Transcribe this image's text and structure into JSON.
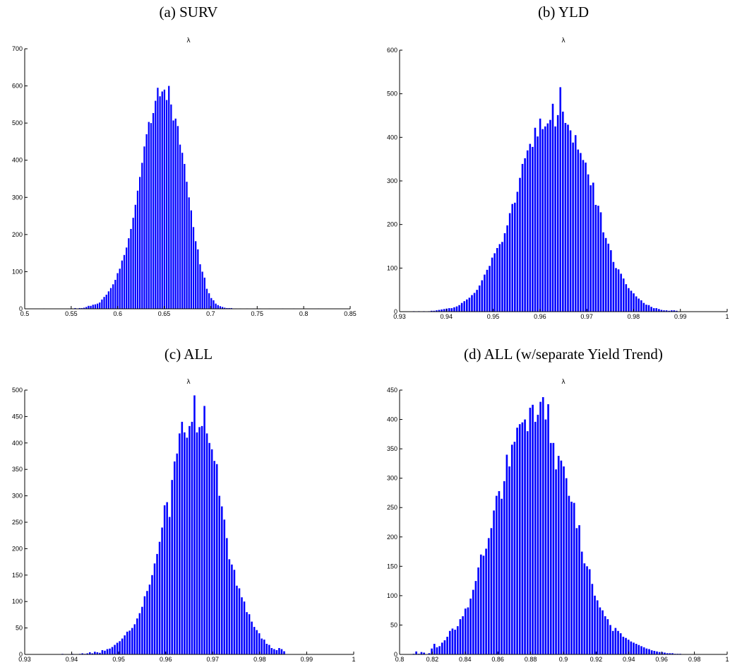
{
  "chart_data": [
    {
      "type": "bar",
      "panel": "a",
      "title": "(a) SURV",
      "annotation": "λ",
      "xlim": [
        0.5,
        0.85
      ],
      "ylim": [
        0,
        700
      ],
      "xticks": [
        0.5,
        0.55,
        0.6,
        0.65,
        0.7,
        0.75,
        0.8,
        0.85
      ],
      "xtick_labels": [
        "0.5",
        "0.55",
        "0.6",
        "0.65",
        "0.7",
        "0.75",
        "0.8",
        "0.85"
      ],
      "yticks": [
        0,
        100,
        200,
        300,
        400,
        500,
        600,
        700
      ],
      "ytick_labels": [
        "0",
        "100",
        "200",
        "300",
        "400",
        "500",
        "600",
        "700"
      ],
      "bin_start": 0.5196,
      "bin_width": 0.0024,
      "values": [
        1,
        0,
        0,
        0,
        0,
        0,
        0,
        0,
        0,
        0,
        0,
        1,
        1,
        1,
        2,
        1,
        2,
        2,
        3,
        5,
        8,
        8,
        11,
        12,
        14,
        17,
        25,
        32,
        38,
        47,
        56,
        66,
        78,
        96,
        108,
        130,
        145,
        165,
        190,
        215,
        245,
        280,
        318,
        355,
        393,
        437,
        470,
        503,
        500,
        527,
        560,
        595,
        572,
        585,
        590,
        562,
        600,
        550,
        507,
        512,
        492,
        442,
        420,
        390,
        342,
        300,
        265,
        220,
        182,
        160,
        120,
        100,
        84,
        54,
        42,
        29,
        23,
        14,
        10,
        7,
        5,
        3,
        2,
        2,
        2,
        1,
        1,
        0,
        1,
        0,
        0,
        1,
        0,
        0,
        1,
        0,
        0,
        1,
        0,
        0,
        0,
        1,
        0,
        0,
        0,
        0,
        0,
        1,
        0,
        0,
        0,
        0,
        1,
        0,
        0,
        0,
        0,
        0,
        0,
        0,
        0,
        0,
        0,
        1
      ]
    },
    {
      "type": "bar",
      "panel": "b",
      "title": "(b) YLD",
      "annotation": "λ",
      "xlim": [
        0.93,
        1
      ],
      "ylim": [
        0,
        600
      ],
      "xticks": [
        0.93,
        0.94,
        0.95,
        0.96,
        0.97,
        0.98,
        0.99,
        1
      ],
      "xtick_labels": [
        "0.93",
        "0.94",
        "0.95",
        "0.96",
        "0.97",
        "0.98",
        "0.99",
        "1"
      ],
      "yticks": [
        0,
        100,
        200,
        300,
        400,
        500,
        600
      ],
      "ytick_labels": [
        "0",
        "100",
        "200",
        "300",
        "400",
        "500",
        "600"
      ],
      "bin_start": 0.9328,
      "bin_width": 0.00054,
      "values": [
        1,
        0,
        1,
        0,
        1,
        0,
        1,
        2,
        2,
        3,
        4,
        5,
        6,
        7,
        8,
        8,
        10,
        12,
        15,
        20,
        24,
        28,
        32,
        38,
        43,
        50,
        60,
        72,
        85,
        96,
        105,
        124,
        134,
        146,
        155,
        160,
        180,
        198,
        226,
        247,
        250,
        275,
        307,
        339,
        352,
        370,
        385,
        378,
        422,
        402,
        443,
        419,
        425,
        432,
        440,
        477,
        425,
        451,
        515,
        459,
        433,
        429,
        416,
        388,
        405,
        372,
        364,
        348,
        342,
        315,
        290,
        296,
        245,
        243,
        228,
        182,
        169,
        156,
        141,
        114,
        100,
        97,
        87,
        76,
        63,
        54,
        48,
        42,
        35,
        30,
        26,
        20,
        16,
        15,
        11,
        8,
        8,
        6,
        4,
        3,
        3,
        2,
        3,
        3,
        2
      ]
    },
    {
      "type": "bar",
      "panel": "c",
      "title": "(c) ALL",
      "annotation": "λ",
      "xlim": [
        0.93,
        1
      ],
      "ylim": [
        0,
        500
      ],
      "xticks": [
        0.93,
        0.94,
        0.95,
        0.96,
        0.97,
        0.98,
        0.99,
        1
      ],
      "xtick_labels": [
        "0.93",
        "0.94",
        "0.95",
        "0.96",
        "0.97",
        "0.98",
        "0.99",
        "1"
      ],
      "yticks": [
        0,
        50,
        100,
        150,
        200,
        250,
        300,
        350,
        400,
        450,
        500
      ],
      "ytick_labels": [
        "0",
        "50",
        "100",
        "150",
        "200",
        "250",
        "300",
        "350",
        "400",
        "450",
        "500"
      ],
      "bin_start": 0.9378,
      "bin_width": 0.00053,
      "values": [
        1,
        0,
        0,
        0,
        1,
        0,
        0,
        1,
        2,
        1,
        2,
        4,
        2,
        5,
        4,
        3,
        8,
        7,
        10,
        11,
        14,
        18,
        22,
        25,
        30,
        36,
        43,
        45,
        50,
        57,
        68,
        78,
        90,
        110,
        120,
        132,
        150,
        172,
        190,
        213,
        240,
        282,
        288,
        260,
        330,
        365,
        380,
        418,
        440,
        420,
        410,
        432,
        440,
        490,
        420,
        430,
        432,
        470,
        418,
        400,
        388,
        366,
        360,
        300,
        280,
        255,
        220,
        180,
        170,
        160,
        130,
        125,
        108,
        100,
        80,
        76,
        62,
        52,
        46,
        40,
        30,
        28,
        20,
        18,
        12,
        10,
        8,
        12,
        10,
        6
      ]
    },
    {
      "type": "bar",
      "panel": "d",
      "title": "(d) ALL (w/separate Yield Trend)",
      "annotation": "λ",
      "xlim": [
        0.8,
        1
      ],
      "ylim": [
        0,
        450
      ],
      "xticks": [
        0.8,
        0.82,
        0.84,
        0.86,
        0.88,
        0.9,
        0.92,
        0.94,
        0.96,
        0.98,
        1
      ],
      "xtick_labels": [
        "0.8",
        "0.82",
        "0.84",
        "0.86",
        "0.88",
        "0.9",
        "0.92",
        "0.94",
        "0.96",
        "0.98",
        "1"
      ],
      "yticks": [
        0,
        50,
        100,
        150,
        200,
        250,
        300,
        350,
        400,
        450
      ],
      "ytick_labels": [
        "0",
        "50",
        "100",
        "150",
        "200",
        "250",
        "300",
        "350",
        "400",
        "450"
      ],
      "bin_start": 0.8079,
      "bin_width": 0.00158,
      "values": [
        1,
        5,
        1,
        4,
        3,
        0,
        2,
        10,
        18,
        12,
        14,
        20,
        24,
        30,
        40,
        44,
        42,
        48,
        60,
        65,
        78,
        80,
        95,
        110,
        125,
        148,
        170,
        168,
        180,
        198,
        215,
        245,
        270,
        278,
        265,
        295,
        340,
        320,
        357,
        362,
        386,
        392,
        395,
        400,
        380,
        420,
        425,
        396,
        408,
        430,
        438,
        400,
        426,
        360,
        360,
        315,
        338,
        330,
        320,
        300,
        270,
        260,
        258,
        215,
        220,
        175,
        155,
        150,
        145,
        120,
        100,
        92,
        80,
        75,
        65,
        60,
        50,
        40,
        45,
        40,
        36,
        30,
        28,
        25,
        22,
        20,
        18,
        16,
        14,
        12,
        10,
        9,
        7,
        6,
        5,
        4,
        4,
        3,
        2,
        2,
        2,
        1,
        1,
        1
      ]
    }
  ]
}
